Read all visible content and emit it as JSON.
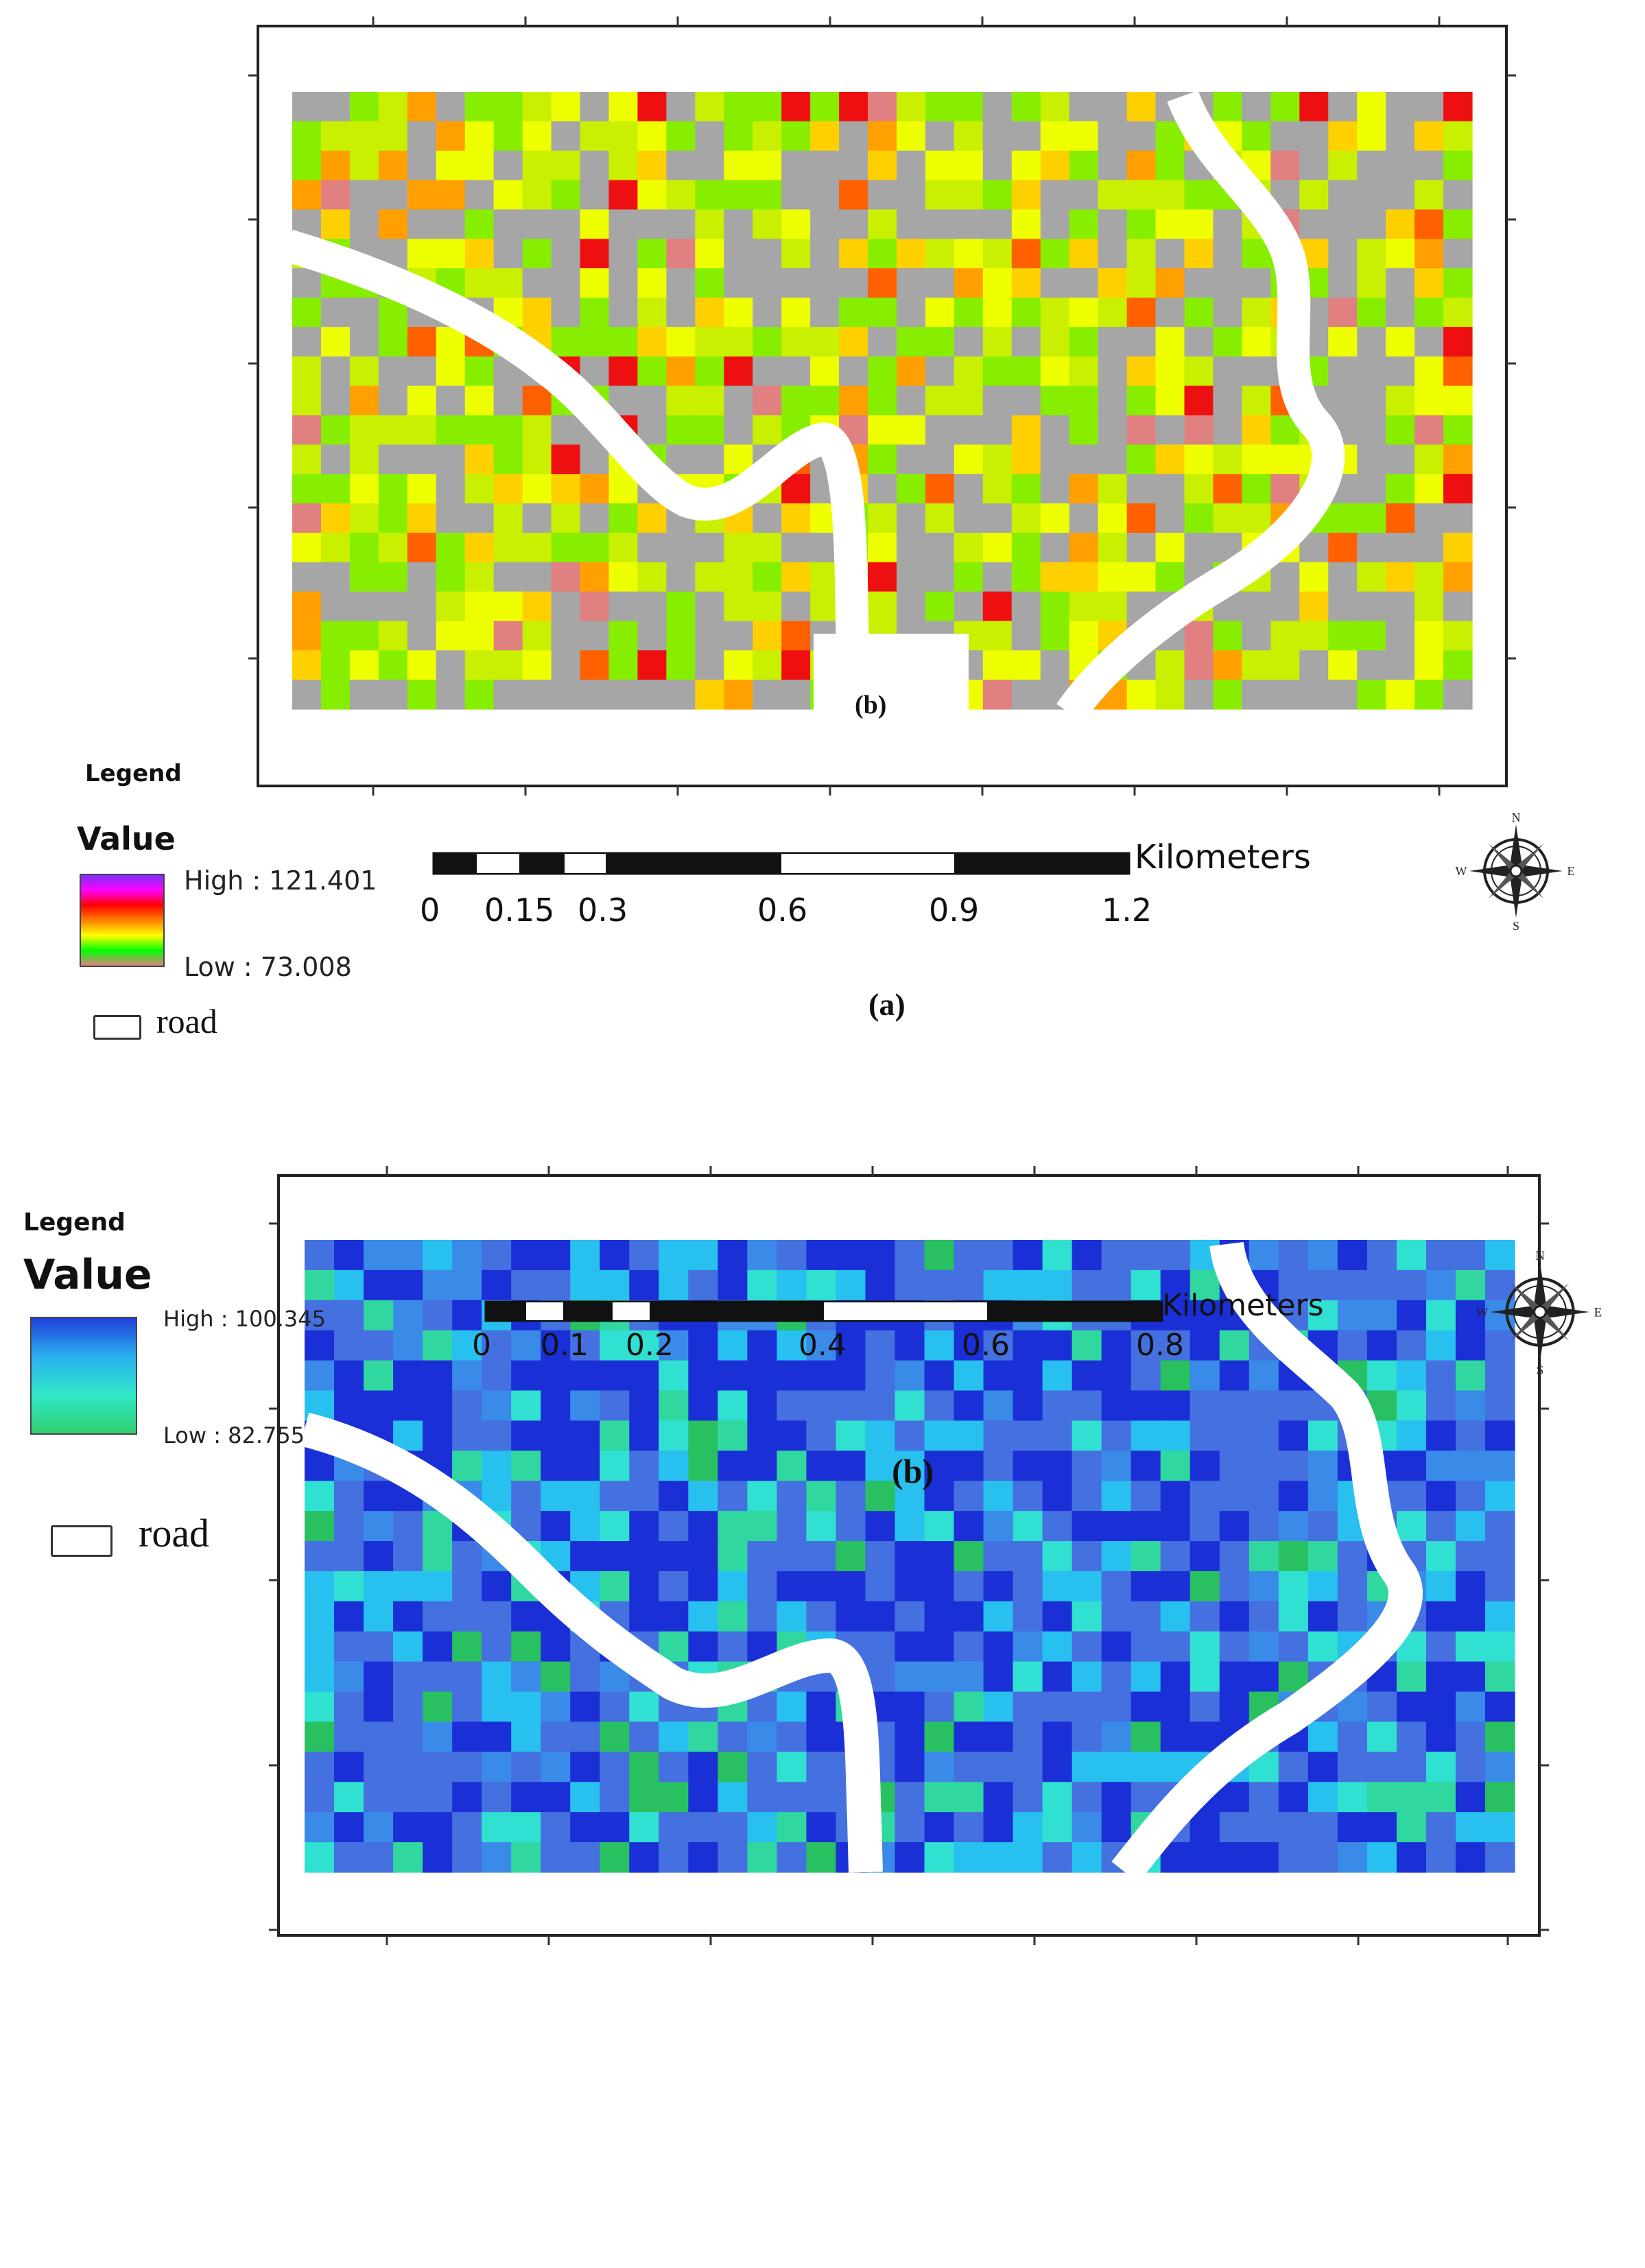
{
  "panels": [
    {
      "id": "a",
      "caption": "(a)",
      "inset_caption": "(b)",
      "legend": {
        "title": "Legend",
        "value_label": "Value",
        "high": "High : 121.401",
        "low": "Low : 73.008",
        "road_label": "road",
        "ramp_colors": [
          "#7b2ff7",
          "#ff00ff",
          "#ff0000",
          "#ff8000",
          "#ffff00",
          "#00ff00",
          "#e08080"
        ]
      },
      "scale": {
        "units": "Kilometers",
        "ticks": [
          "0",
          "0.15",
          "0.3",
          "0.6",
          "0.9",
          "1.2"
        ]
      },
      "compass": {
        "N": "N",
        "S": "S",
        "E": "E",
        "W": "W"
      },
      "palette": {
        "background_cell": "#a6a6a6",
        "classes": [
          "#a6a6a6",
          "#88ee00",
          "#c8f000",
          "#eeff00",
          "#ffd000",
          "#ffa000",
          "#ff6000",
          "#ee1010",
          "#e08080"
        ]
      }
    },
    {
      "id": "b",
      "caption": "(b)",
      "legend": {
        "title": "Legend",
        "value_label": "Value",
        "high": "High : 100.345",
        "low": "Low : 82.755",
        "road_label": "road",
        "ramp_colors": [
          "#1f3fd8",
          "#2ab0f0",
          "#30e8c8",
          "#30d070"
        ]
      },
      "scale": {
        "units": "Kilometers",
        "ticks": [
          "0",
          "0.1",
          "0.2",
          "0.4",
          "0.6",
          "0.8"
        ]
      },
      "compass": {
        "N": "N",
        "S": "S",
        "E": "E",
        "W": "W"
      },
      "palette": {
        "background_cell": "#4466dd",
        "classes": [
          "#1a30d6",
          "#4470e0",
          "#3a8ae8",
          "#28c0ee",
          "#30e0d0",
          "#30d8a0",
          "#28c060"
        ]
      }
    }
  ]
}
